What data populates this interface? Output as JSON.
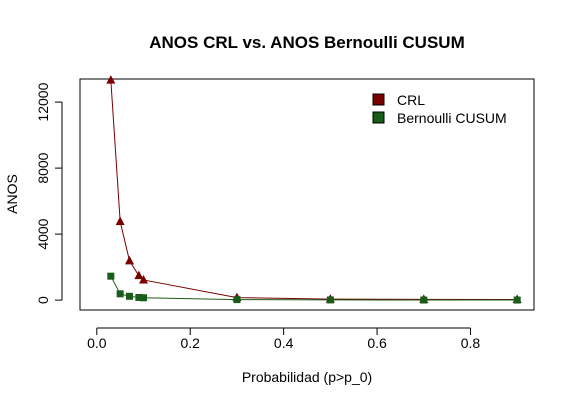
{
  "chart_data": {
    "type": "line",
    "title": "ANOS CRL vs. ANOS Bernoulli CUSUM",
    "xlabel": "Probabilidad (p>p_0)",
    "ylabel": "ANOS",
    "xlim": [
      0.0,
      0.9
    ],
    "ylim": [
      -600,
      13400
    ],
    "x_ticks": [
      0.0,
      0.2,
      0.4,
      0.6,
      0.8
    ],
    "x_tick_labels": [
      "0.0",
      "0.2",
      "0.4",
      "0.6",
      "0.8"
    ],
    "y_ticks": [
      0,
      4000,
      8000,
      12000
    ],
    "y_tick_labels": [
      "0",
      "4000",
      "8000",
      "12000"
    ],
    "legend_position": "top-right",
    "grid": false,
    "series": [
      {
        "name": "CRL",
        "color": "#7a0000",
        "marker": "triangle",
        "x": [
          0.03,
          0.05,
          0.07,
          0.09,
          0.1,
          0.3,
          0.5,
          0.7,
          0.9
        ],
        "y": [
          13333,
          4762,
          2381,
          1481,
          1220,
          150,
          60,
          43,
          33
        ]
      },
      {
        "name": "Bernoulli CUSUM",
        "color": "#1a5c1a",
        "marker": "square",
        "x": [
          0.03,
          0.05,
          0.07,
          0.09,
          0.1,
          0.3,
          0.5,
          0.7,
          0.9
        ],
        "y": [
          1450,
          380,
          230,
          160,
          140,
          30,
          10,
          5,
          3
        ]
      }
    ]
  }
}
